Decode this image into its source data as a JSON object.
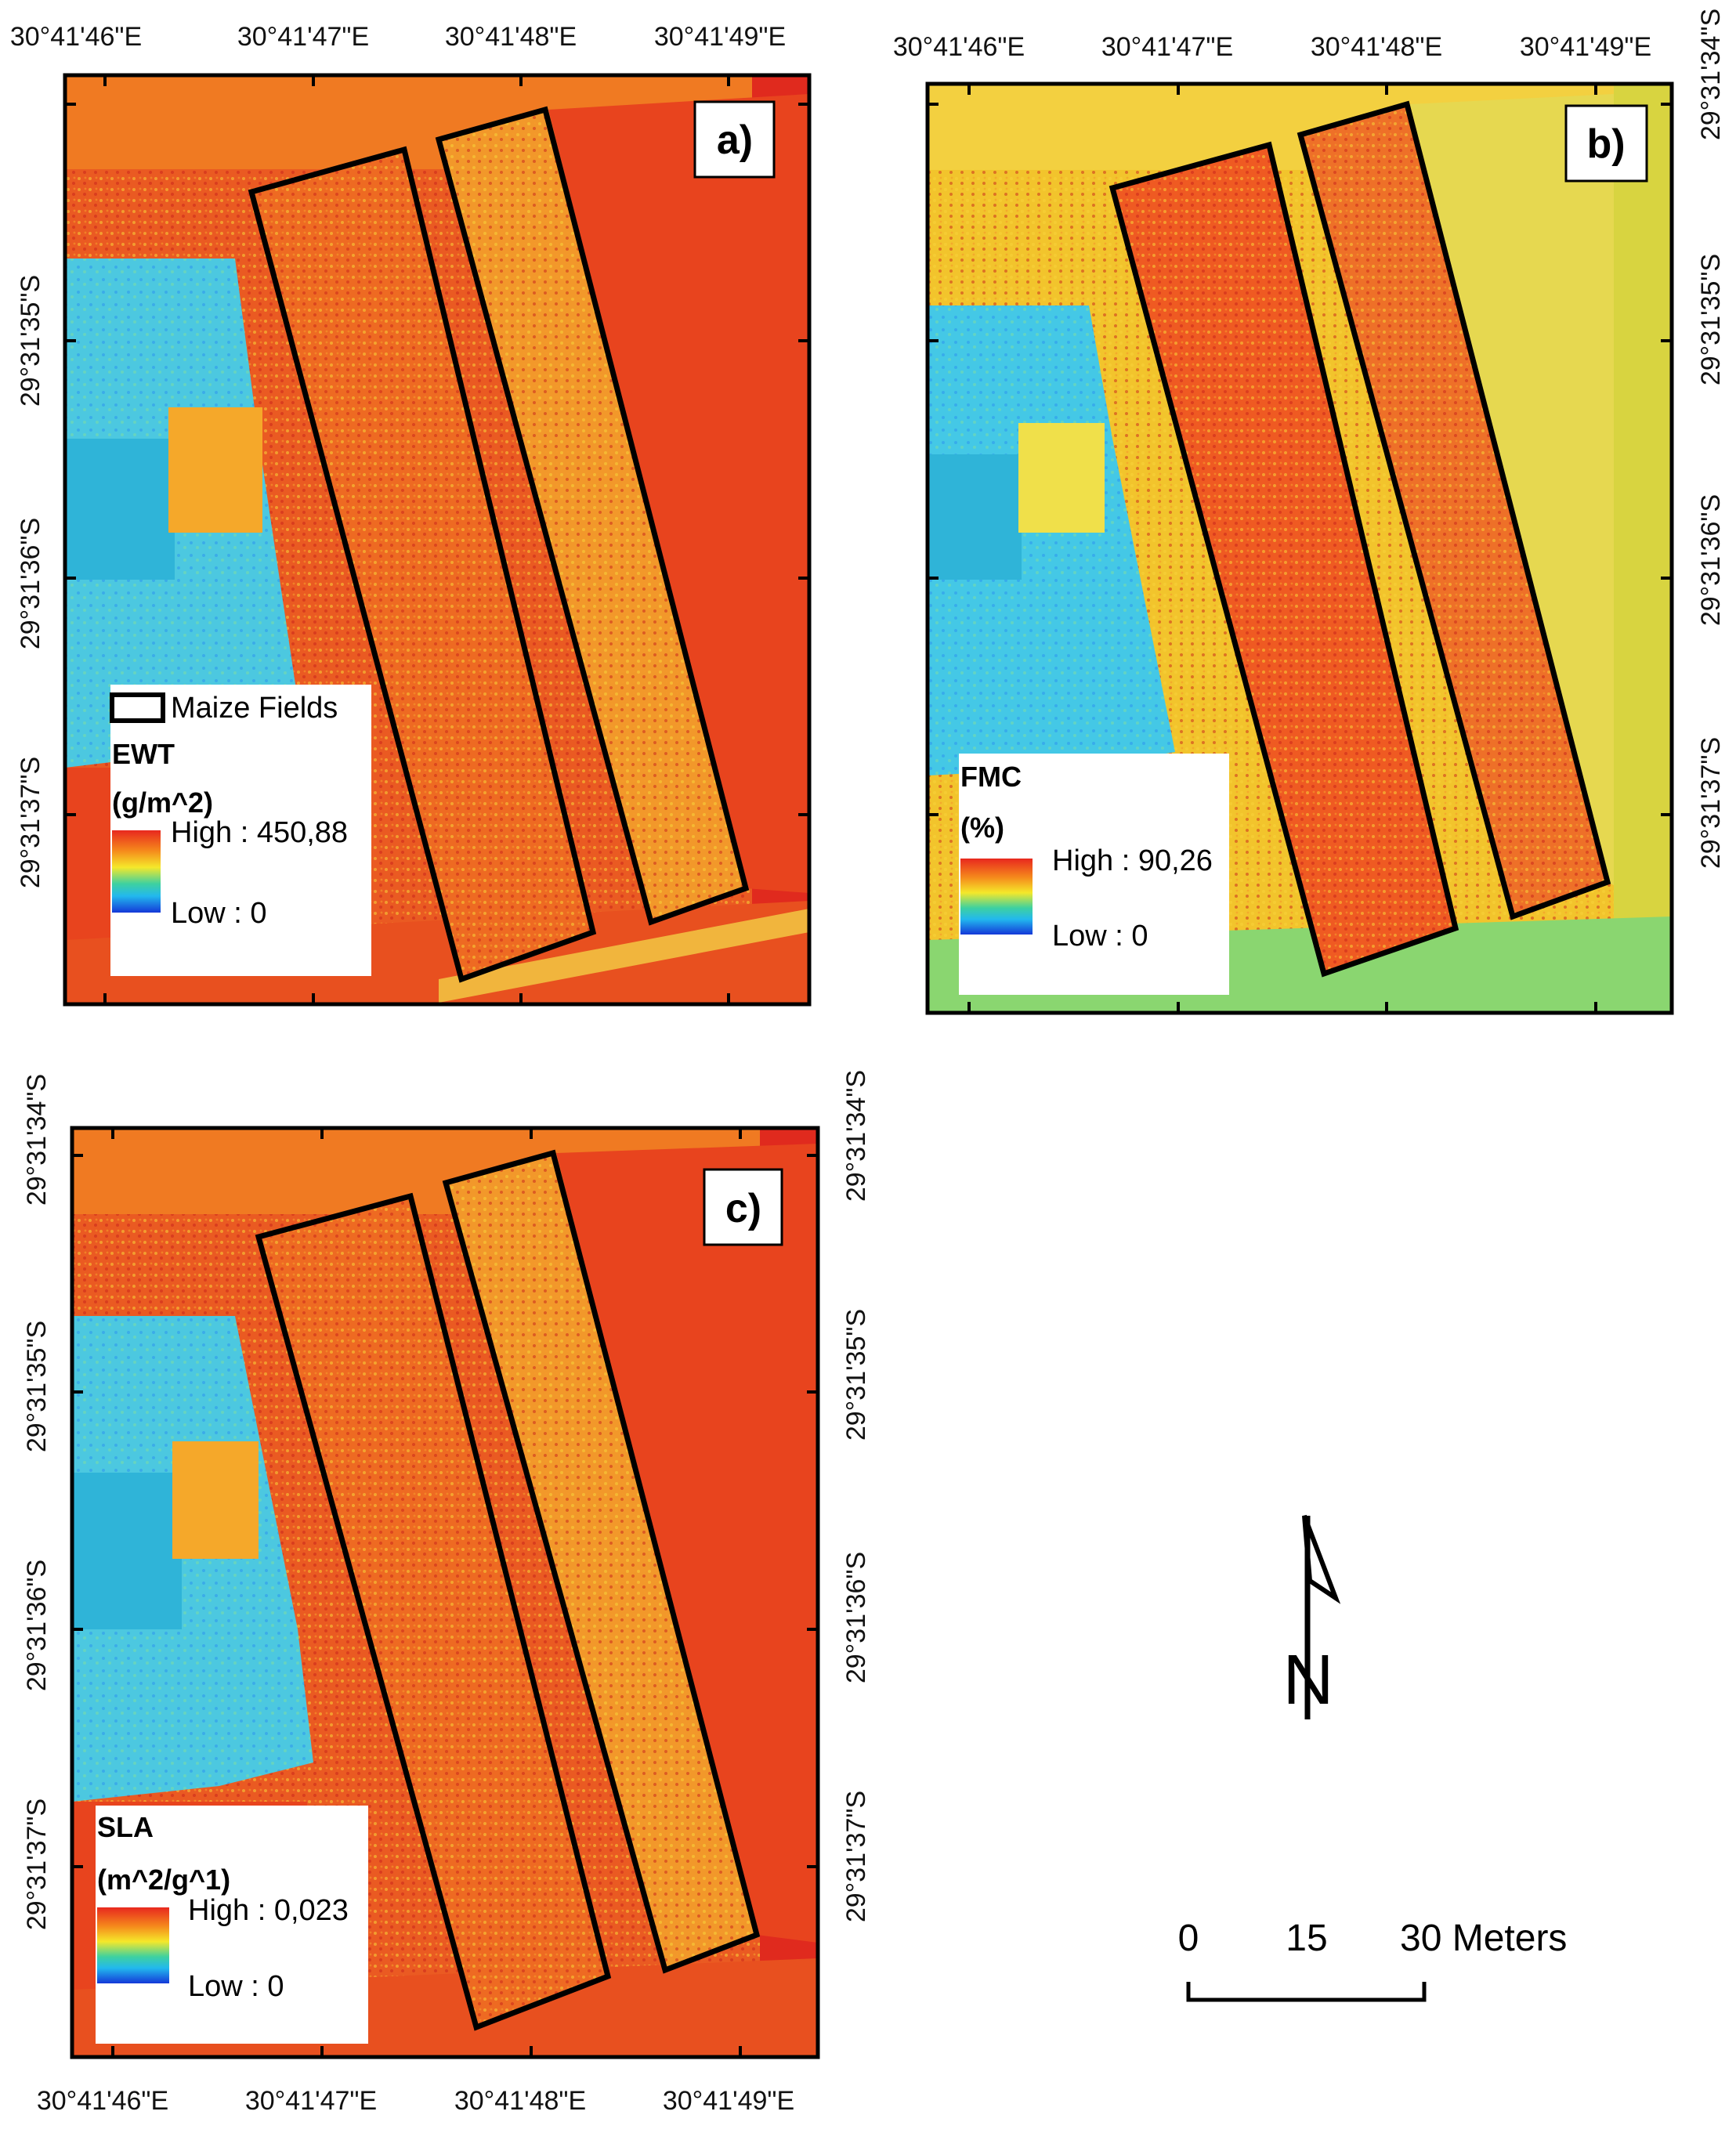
{
  "panels": [
    {
      "label": "a)",
      "legend": {
        "maize_label": "Maize Fields",
        "variable": "EWT",
        "unit": "(g/m^2)",
        "high": "High : 450,88",
        "low": "Low : 0"
      },
      "top_ticks": [
        "30°41'46\"E",
        "30°41'47\"E",
        "30°41'48\"E",
        "30°41'49\"E"
      ],
      "left_ticks": [
        "29°31'35\"S",
        "29°31'36\"S",
        "29°31'37\"S"
      ]
    },
    {
      "label": "b)",
      "legend": {
        "variable": "FMC",
        "unit": "(%)",
        "high": "High : 90,26",
        "low": "Low : 0"
      },
      "top_ticks": [
        "30°41'46\"E",
        "30°41'47\"E",
        "30°41'48\"E",
        "30°41'49\"E"
      ],
      "right_ticks": [
        "29°31'34\"S",
        "29°31'35\"S",
        "29°31'36\"S",
        "29°31'37\"S"
      ]
    },
    {
      "label": "c)",
      "legend": {
        "variable": "SLA",
        "unit": "(m^2/g^1)",
        "high": "High : 0,023",
        "low": "Low : 0"
      },
      "bottom_ticks": [
        "30°41'46\"E",
        "30°41'47\"E",
        "30°41'48\"E",
        "30°41'49\"E"
      ],
      "left_ticks": [
        "29°31'34\"S",
        "29°31'35\"S",
        "29°31'36\"S",
        "29°31'37\"S"
      ],
      "right_ticks": [
        "29°31'34\"S",
        "29°31'35\"S",
        "29°31'36\"S",
        "29°31'37\"S"
      ]
    }
  ],
  "north_arrow": {
    "label": "N"
  },
  "scale_bar": {
    "labels": [
      "0",
      "15",
      "30 Meters"
    ]
  },
  "colors": {
    "ramp_high": "#e8281e",
    "ramp_mid": "#f5e82a",
    "ramp_low": "#1438d8",
    "frame": "#000000"
  }
}
